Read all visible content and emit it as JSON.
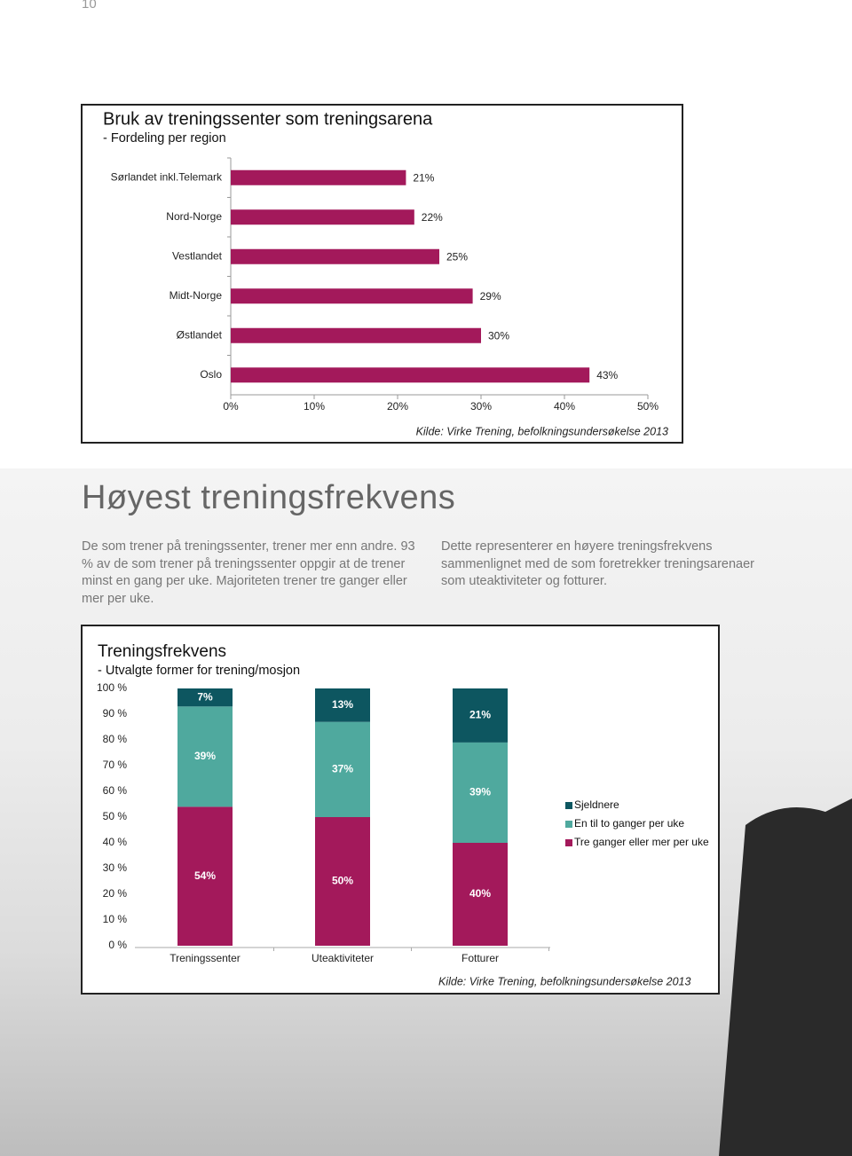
{
  "page_number": "10",
  "heading": "Høyest treningsfrekvens",
  "paragraphs": [
    "De som trener på treningssenter, trener mer enn andre. 93 % av de som trener på treningssenter oppgir at de trener minst en gang per uke. Majoriteten trener tre ganger eller mer per uke.",
    "Dette representerer en høyere treningsfrekvens sammenlignet med de som foretrekker treningsarenaer som uteaktiviteter og fotturer."
  ],
  "chart_data": [
    {
      "type": "hbar",
      "title": "Bruk av treningssenter som treningsarena",
      "subtitle": "- Fordeling per region",
      "categories": [
        "Sørlandet inkl.Telemark",
        "Nord-Norge",
        "Vestlandet",
        "Midt-Norge",
        "Østlandet",
        "Oslo"
      ],
      "values": [
        21,
        22,
        25,
        29,
        30,
        43
      ],
      "value_labels": [
        "21%",
        "22%",
        "25%",
        "29%",
        "30%",
        "43%"
      ],
      "color": "#a3195b",
      "xlim": [
        0,
        50
      ],
      "xticks": [
        {
          "value": 0,
          "label": "0%"
        },
        {
          "value": 10,
          "label": "10%"
        },
        {
          "value": 20,
          "label": "20%"
        },
        {
          "value": 30,
          "label": "30%"
        },
        {
          "value": 40,
          "label": "40%"
        },
        {
          "value": 50,
          "label": "50%"
        }
      ],
      "source": "Kilde: Virke Trening, befolkningsundersøkelse 2013"
    },
    {
      "type": "stacked_bar",
      "title": "Treningsfrekvens",
      "subtitle": "- Utvalgte former for trening/mosjon",
      "categories": [
        "Treningssenter",
        "Uteaktiviteter",
        "Fotturer"
      ],
      "series": [
        {
          "name": "Tre ganger eller mer per uke",
          "color": "#a3195b",
          "values": [
            54,
            50,
            40
          ],
          "value_labels": [
            "54%",
            "50%",
            "40%"
          ]
        },
        {
          "name": "En til to ganger per uke",
          "color": "#4fa99e",
          "values": [
            39,
            37,
            39
          ],
          "value_labels": [
            "39%",
            "37%",
            "39%"
          ]
        },
        {
          "name": "Sjeldnere",
          "color": "#0d5660",
          "values": [
            7,
            13,
            21
          ],
          "value_labels": [
            "7%",
            "13%",
            "21%"
          ]
        }
      ],
      "ylim": [
        0,
        100
      ],
      "yticks": [
        {
          "value": 0,
          "label": "0 %"
        },
        {
          "value": 10,
          "label": "10 %"
        },
        {
          "value": 20,
          "label": "20 %"
        },
        {
          "value": 30,
          "label": "30 %"
        },
        {
          "value": 40,
          "label": "40 %"
        },
        {
          "value": 50,
          "label": "50 %"
        },
        {
          "value": 60,
          "label": "60 %"
        },
        {
          "value": 70,
          "label": "70 %"
        },
        {
          "value": 80,
          "label": "80 %"
        },
        {
          "value": 90,
          "label": "90 %"
        },
        {
          "value": 100,
          "label": "100 %"
        }
      ],
      "source": "Kilde: Virke Trening, befolkningsundersøkelse 2013"
    }
  ]
}
